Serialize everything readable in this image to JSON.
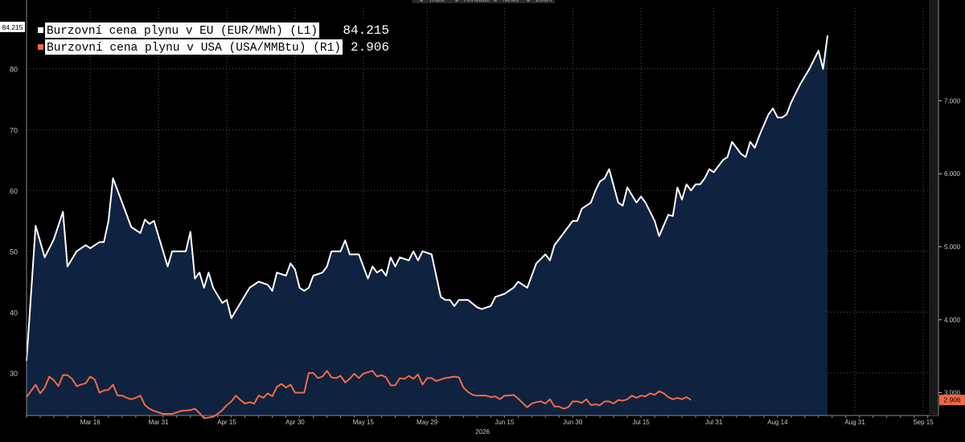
{
  "toolbar": {
    "items": [
      "Track",
      "Annotate",
      "News",
      "Zoom"
    ]
  },
  "legend": {
    "entries": [
      {
        "label": "Burzovní cena plynu v EU (EUR/MWh) (L1)",
        "value": "84.215",
        "color": "#ffffff"
      },
      {
        "label": "Burzovní cena plynu v USA (USA/MMBtu) (R1)",
        "value": "2.906",
        "color": "#f26a45"
      }
    ]
  },
  "colors": {
    "background": "#000000",
    "area_fill": "#0f2240",
    "eu_line": "#ffffff",
    "usa_line": "#f26a45",
    "axis_text": "#c8c8c8",
    "grid": "#555555"
  },
  "chart_data": {
    "type": "line",
    "title": "",
    "x_tick_labels": [
      "Mar 16",
      "Mar 31",
      "Apr 15",
      "Apr 30",
      "May 15",
      "May 29",
      "Jun 15",
      "Jun 30",
      "Jul 15",
      "Jul 31",
      "Aug 14",
      "Aug 31",
      "Sep 15"
    ],
    "x_year_label": "2026",
    "x_range_days": [
      0,
      200
    ],
    "x_tick_days": [
      14,
      29,
      44,
      59,
      74,
      88,
      105,
      120,
      135,
      151,
      165,
      182,
      197
    ],
    "y_left": {
      "ticks": [
        30,
        40,
        50,
        60,
        70,
        80
      ],
      "range": [
        23,
        90
      ],
      "current_label": "84.215"
    },
    "y_right": {
      "ticks": [
        "3.000",
        "4.000",
        "5.000",
        "6.000",
        "7.000"
      ],
      "range": [
        2.6875,
        8.2708
      ],
      "current_label": "2.906"
    },
    "grid": true,
    "legend_position": "top-left",
    "series": [
      {
        "name": "Burzovní cena plynu v EU (EUR/MWh) (L1)",
        "axis": "left",
        "fill": "area",
        "points": [
          [
            0,
            32
          ],
          [
            2,
            54.2
          ],
          [
            4,
            49
          ],
          [
            6,
            52
          ],
          [
            8,
            56.5
          ],
          [
            9,
            47.5
          ],
          [
            11,
            50
          ],
          [
            13,
            51
          ],
          [
            14,
            50.5
          ],
          [
            16,
            51.5
          ],
          [
            17,
            51.5
          ],
          [
            18,
            55
          ],
          [
            19,
            62
          ],
          [
            21,
            58
          ],
          [
            23,
            54
          ],
          [
            25,
            53
          ],
          [
            26,
            55.2
          ],
          [
            27,
            54.5
          ],
          [
            28,
            55
          ],
          [
            30,
            50
          ],
          [
            31,
            47.5
          ],
          [
            32,
            50
          ],
          [
            34,
            50
          ],
          [
            35,
            50
          ],
          [
            36,
            53.2
          ],
          [
            37,
            45.5
          ],
          [
            38,
            46.5
          ],
          [
            39,
            44
          ],
          [
            40,
            46.5
          ],
          [
            41,
            44
          ],
          [
            43,
            41.5
          ],
          [
            44,
            42
          ],
          [
            45,
            39
          ],
          [
            47,
            41.5
          ],
          [
            49,
            44
          ],
          [
            51,
            45
          ],
          [
            53,
            44.5
          ],
          [
            54,
            43.5
          ],
          [
            55,
            46.5
          ],
          [
            57,
            46
          ],
          [
            58,
            48
          ],
          [
            59,
            47
          ],
          [
            60,
            44
          ],
          [
            61,
            43.5
          ],
          [
            62,
            44
          ],
          [
            63,
            46
          ],
          [
            65,
            46.5
          ],
          [
            66,
            47.5
          ],
          [
            67,
            50
          ],
          [
            69,
            50
          ],
          [
            70,
            51.8
          ],
          [
            71,
            49.5
          ],
          [
            73,
            49.5
          ],
          [
            75,
            45.5
          ],
          [
            76,
            47.5
          ],
          [
            77,
            46.5
          ],
          [
            78,
            47
          ],
          [
            79,
            46
          ],
          [
            80,
            49
          ],
          [
            81,
            47.5
          ],
          [
            82,
            49
          ],
          [
            84,
            48.5
          ],
          [
            85,
            50
          ],
          [
            86,
            48.5
          ],
          [
            87,
            50
          ],
          [
            89,
            49.5
          ],
          [
            91,
            42.5
          ],
          [
            92,
            42
          ],
          [
            93,
            42
          ],
          [
            94,
            41
          ],
          [
            95,
            42
          ],
          [
            97,
            42
          ],
          [
            99,
            40.8
          ],
          [
            100,
            40.5
          ],
          [
            102,
            41
          ],
          [
            103,
            42.5
          ],
          [
            105,
            43
          ],
          [
            107,
            44
          ],
          [
            108,
            45
          ],
          [
            110,
            44
          ],
          [
            112,
            48
          ],
          [
            114,
            49.5
          ],
          [
            115,
            48.5
          ],
          [
            116,
            51
          ],
          [
            118,
            53
          ],
          [
            120,
            55
          ],
          [
            121,
            55
          ],
          [
            122,
            57
          ],
          [
            124,
            58
          ],
          [
            125,
            60
          ],
          [
            126,
            61.5
          ],
          [
            127,
            62
          ],
          [
            128,
            63.5
          ],
          [
            130,
            58
          ],
          [
            131,
            57.5
          ],
          [
            132,
            60.5
          ],
          [
            134,
            58
          ],
          [
            135,
            59
          ],
          [
            136,
            58
          ],
          [
            138,
            55
          ],
          [
            139,
            52.5
          ],
          [
            141,
            56
          ],
          [
            142,
            55.8
          ],
          [
            143,
            60.5
          ],
          [
            144,
            58.5
          ],
          [
            145,
            61
          ],
          [
            146,
            60
          ],
          [
            147,
            61
          ],
          [
            148,
            61
          ],
          [
            149,
            62
          ],
          [
            150,
            63.5
          ],
          [
            151,
            63
          ],
          [
            153,
            65
          ],
          [
            154,
            65.5
          ],
          [
            155,
            68
          ],
          [
            157,
            66
          ],
          [
            158,
            65.5
          ],
          [
            159,
            68
          ],
          [
            160,
            67
          ],
          [
            161,
            69
          ],
          [
            163,
            72.5
          ],
          [
            164,
            73.5
          ],
          [
            165,
            72
          ],
          [
            166,
            72
          ],
          [
            167,
            72.5
          ],
          [
            168,
            74.5
          ],
          [
            170,
            77.5
          ],
          [
            172,
            80
          ],
          [
            174,
            83
          ],
          [
            175,
            80
          ],
          [
            176,
            85.5
          ]
        ]
      },
      {
        "name": "Burzovní cena plynu v USA (USA/MMBtu) (R1)",
        "axis": "right",
        "fill": "none",
        "points": [
          [
            0,
            2.94
          ],
          [
            2,
            3.11
          ],
          [
            3,
            2.99
          ],
          [
            4,
            3.07
          ],
          [
            5,
            3.22
          ],
          [
            6,
            3.17
          ],
          [
            7,
            3.09
          ],
          [
            8,
            3.24
          ],
          [
            9,
            3.24
          ],
          [
            10,
            3.19
          ],
          [
            11,
            3.09
          ],
          [
            12,
            3.11
          ],
          [
            13,
            3.13
          ],
          [
            14,
            3.22
          ],
          [
            15,
            3.18
          ],
          [
            16,
            3.0
          ],
          [
            17,
            3.03
          ],
          [
            18,
            3.04
          ],
          [
            19,
            3.11
          ],
          [
            20,
            2.96
          ],
          [
            21,
            2.96
          ],
          [
            22,
            2.93
          ],
          [
            23,
            2.91
          ],
          [
            24,
            2.93
          ],
          [
            25,
            2.96
          ],
          [
            26,
            2.83
          ],
          [
            27,
            2.78
          ],
          [
            28,
            2.75
          ],
          [
            30,
            2.71
          ],
          [
            32,
            2.71
          ],
          [
            34,
            2.75
          ],
          [
            36,
            2.76
          ],
          [
            37,
            2.78
          ],
          [
            38,
            2.72
          ],
          [
            39,
            2.65
          ],
          [
            41,
            2.67
          ],
          [
            42,
            2.71
          ],
          [
            43,
            2.76
          ],
          [
            44,
            2.83
          ],
          [
            45,
            2.88
          ],
          [
            46,
            2.96
          ],
          [
            47,
            2.9
          ],
          [
            48,
            2.85
          ],
          [
            49,
            2.87
          ],
          [
            50,
            2.85
          ],
          [
            51,
            2.96
          ],
          [
            52,
            2.93
          ],
          [
            53,
            2.99
          ],
          [
            54,
            2.95
          ],
          [
            55,
            3.08
          ],
          [
            56,
            3.12
          ],
          [
            57,
            3.07
          ],
          [
            58,
            3.11
          ],
          [
            59,
            3.0
          ],
          [
            60,
            3.0
          ],
          [
            61,
            3.0
          ],
          [
            62,
            3.27
          ],
          [
            63,
            3.27
          ],
          [
            64,
            3.2
          ],
          [
            65,
            3.22
          ],
          [
            66,
            3.3
          ],
          [
            67,
            3.21
          ],
          [
            68,
            3.2
          ],
          [
            69,
            3.23
          ],
          [
            70,
            3.14
          ],
          [
            71,
            3.19
          ],
          [
            72,
            3.26
          ],
          [
            73,
            3.2
          ],
          [
            74,
            3.26
          ],
          [
            75,
            3.28
          ],
          [
            76,
            3.3
          ],
          [
            77,
            3.22
          ],
          [
            78,
            3.24
          ],
          [
            79,
            3.21
          ],
          [
            80,
            3.1
          ],
          [
            81,
            3.1
          ],
          [
            82,
            3.2
          ],
          [
            83,
            3.19
          ],
          [
            84,
            3.23
          ],
          [
            85,
            3.19
          ],
          [
            86,
            3.25
          ],
          [
            87,
            3.11
          ],
          [
            88,
            3.2
          ],
          [
            89,
            3.2
          ],
          [
            90,
            3.16
          ],
          [
            92,
            3.2
          ],
          [
            94,
            3.22
          ],
          [
            95,
            3.21
          ],
          [
            96,
            3.07
          ],
          [
            97,
            3.01
          ],
          [
            98,
            2.97
          ],
          [
            99,
            2.96
          ],
          [
            100,
            2.96
          ],
          [
            101,
            2.96
          ],
          [
            102,
            2.94
          ],
          [
            103,
            2.95
          ],
          [
            104,
            2.91
          ],
          [
            105,
            2.96
          ],
          [
            106,
            2.96
          ],
          [
            107,
            2.97
          ],
          [
            108,
            2.92
          ],
          [
            109,
            2.86
          ],
          [
            110,
            2.8
          ],
          [
            111,
            2.85
          ],
          [
            112,
            2.87
          ],
          [
            113,
            2.88
          ],
          [
            114,
            2.85
          ],
          [
            115,
            2.91
          ],
          [
            116,
            2.81
          ],
          [
            117,
            2.81
          ],
          [
            118,
            2.78
          ],
          [
            119,
            2.8
          ],
          [
            120,
            2.88
          ],
          [
            121,
            2.88
          ],
          [
            122,
            2.86
          ],
          [
            123,
            2.91
          ],
          [
            124,
            2.83
          ],
          [
            125,
            2.84
          ],
          [
            126,
            2.83
          ],
          [
            127,
            2.88
          ],
          [
            128,
            2.88
          ],
          [
            129,
            2.85
          ],
          [
            130,
            2.9
          ],
          [
            131,
            2.89
          ],
          [
            132,
            2.91
          ],
          [
            133,
            2.96
          ],
          [
            134,
            2.93
          ],
          [
            135,
            2.96
          ],
          [
            136,
            2.95
          ],
          [
            137,
            2.99
          ],
          [
            138,
            2.97
          ],
          [
            139,
            3.02
          ],
          [
            140,
            2.99
          ],
          [
            141,
            2.94
          ],
          [
            142,
            2.91
          ],
          [
            143,
            2.93
          ],
          [
            144,
            2.91
          ],
          [
            145,
            2.94
          ],
          [
            146,
            2.9
          ]
        ]
      }
    ]
  }
}
